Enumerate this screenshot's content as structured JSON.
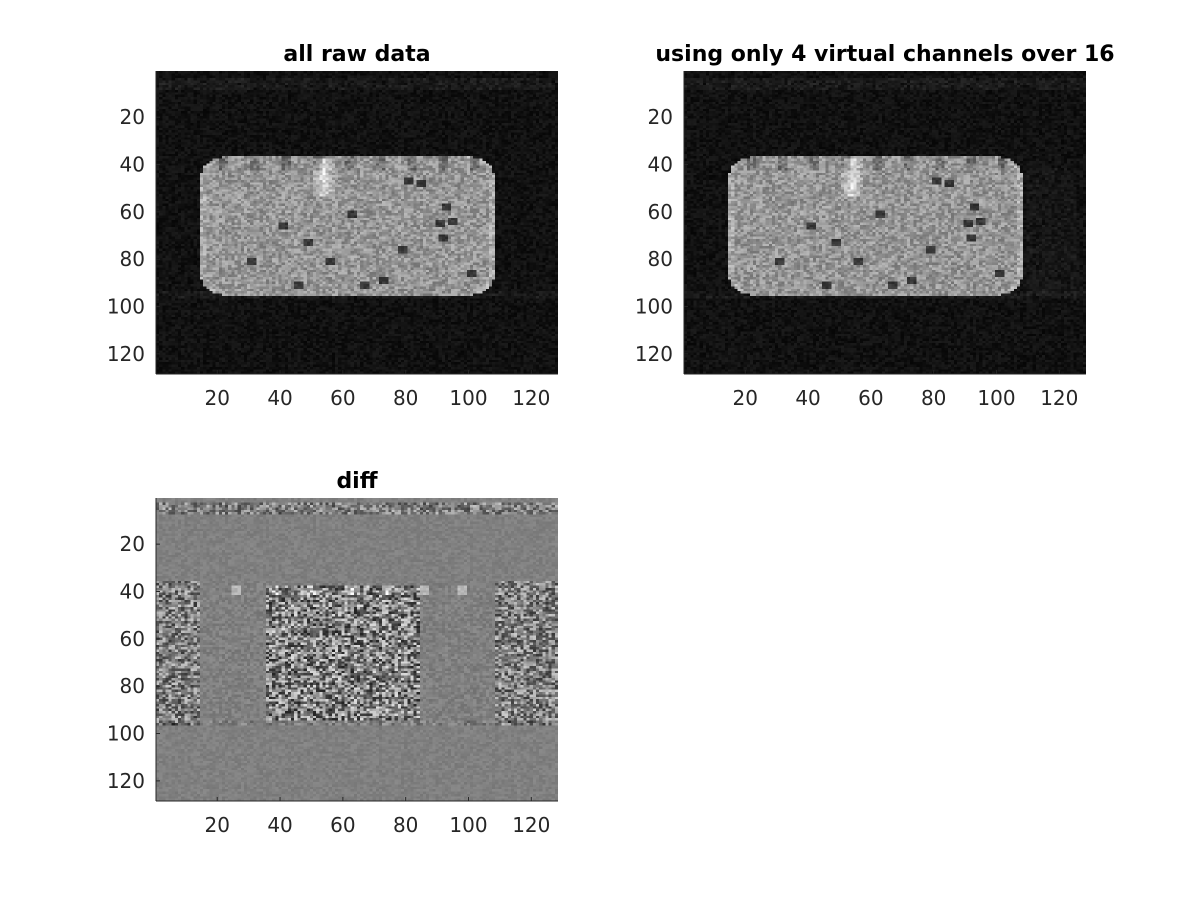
{
  "chart_data": [
    {
      "type": "heatmap",
      "title": "all raw data",
      "colormap": "gray",
      "content": "image",
      "xticks": [
        20,
        40,
        60,
        80,
        100,
        120
      ],
      "yticks": [
        20,
        40,
        60,
        80,
        100,
        120
      ],
      "xlim": [
        0.5,
        128.5
      ],
      "ylim": [
        0.5,
        128.5
      ],
      "y_direction": "reverse"
    },
    {
      "type": "heatmap",
      "title": "using only 4 virtual channels over 16",
      "colormap": "gray",
      "content": "image",
      "xticks": [
        20,
        40,
        60,
        80,
        100,
        120
      ],
      "yticks": [
        20,
        40,
        60,
        80,
        100,
        120
      ],
      "xlim": [
        0.5,
        128.5
      ],
      "ylim": [
        0.5,
        128.5
      ],
      "y_direction": "reverse"
    },
    {
      "type": "heatmap",
      "title": "diff",
      "colormap": "gray",
      "content": "diff",
      "xticks": [
        20,
        40,
        60,
        80,
        100,
        120
      ],
      "yticks": [
        20,
        40,
        60,
        80,
        100,
        120
      ],
      "xlim": [
        0.5,
        128.5
      ],
      "ylim": [
        0.5,
        128.5
      ],
      "y_direction": "reverse"
    }
  ]
}
